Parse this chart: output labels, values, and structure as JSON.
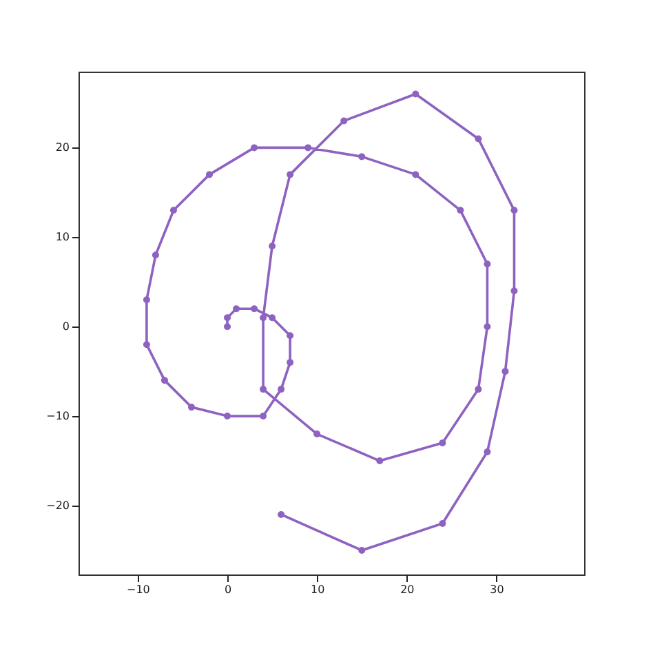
{
  "chart_data": {
    "type": "line",
    "marker": "circle",
    "line_style": "solid",
    "grid": false,
    "xlim": [
      -16.6,
      39.8
    ],
    "ylim": [
      -27.7,
      28.5
    ],
    "xticks": [
      -10,
      0,
      10,
      20,
      30
    ],
    "yticks": [
      -20,
      -10,
      0,
      10,
      20
    ],
    "series": [
      {
        "color": "#8e62c0",
        "x": [
          0,
          0,
          1,
          3,
          5,
          7,
          7,
          6,
          4,
          0,
          -4,
          -7,
          -9,
          -9,
          -8,
          -6,
          -2,
          3,
          9,
          15,
          21,
          26,
          29,
          29,
          28,
          24,
          17,
          10,
          4,
          4,
          5,
          7,
          13,
          21,
          28,
          32,
          32,
          31,
          29,
          24,
          15,
          6
        ],
        "values": [
          0,
          1,
          2,
          2,
          1,
          -1,
          -4,
          -7,
          -10,
          -10,
          -9,
          -6,
          -2,
          3,
          8,
          13,
          17,
          20,
          20,
          19,
          17,
          13,
          7,
          0,
          -7,
          -13,
          -15,
          -12,
          -7,
          1,
          9,
          17,
          23,
          26,
          21,
          13,
          4,
          -5,
          -14,
          -22,
          -25,
          -21
        ]
      }
    ]
  }
}
